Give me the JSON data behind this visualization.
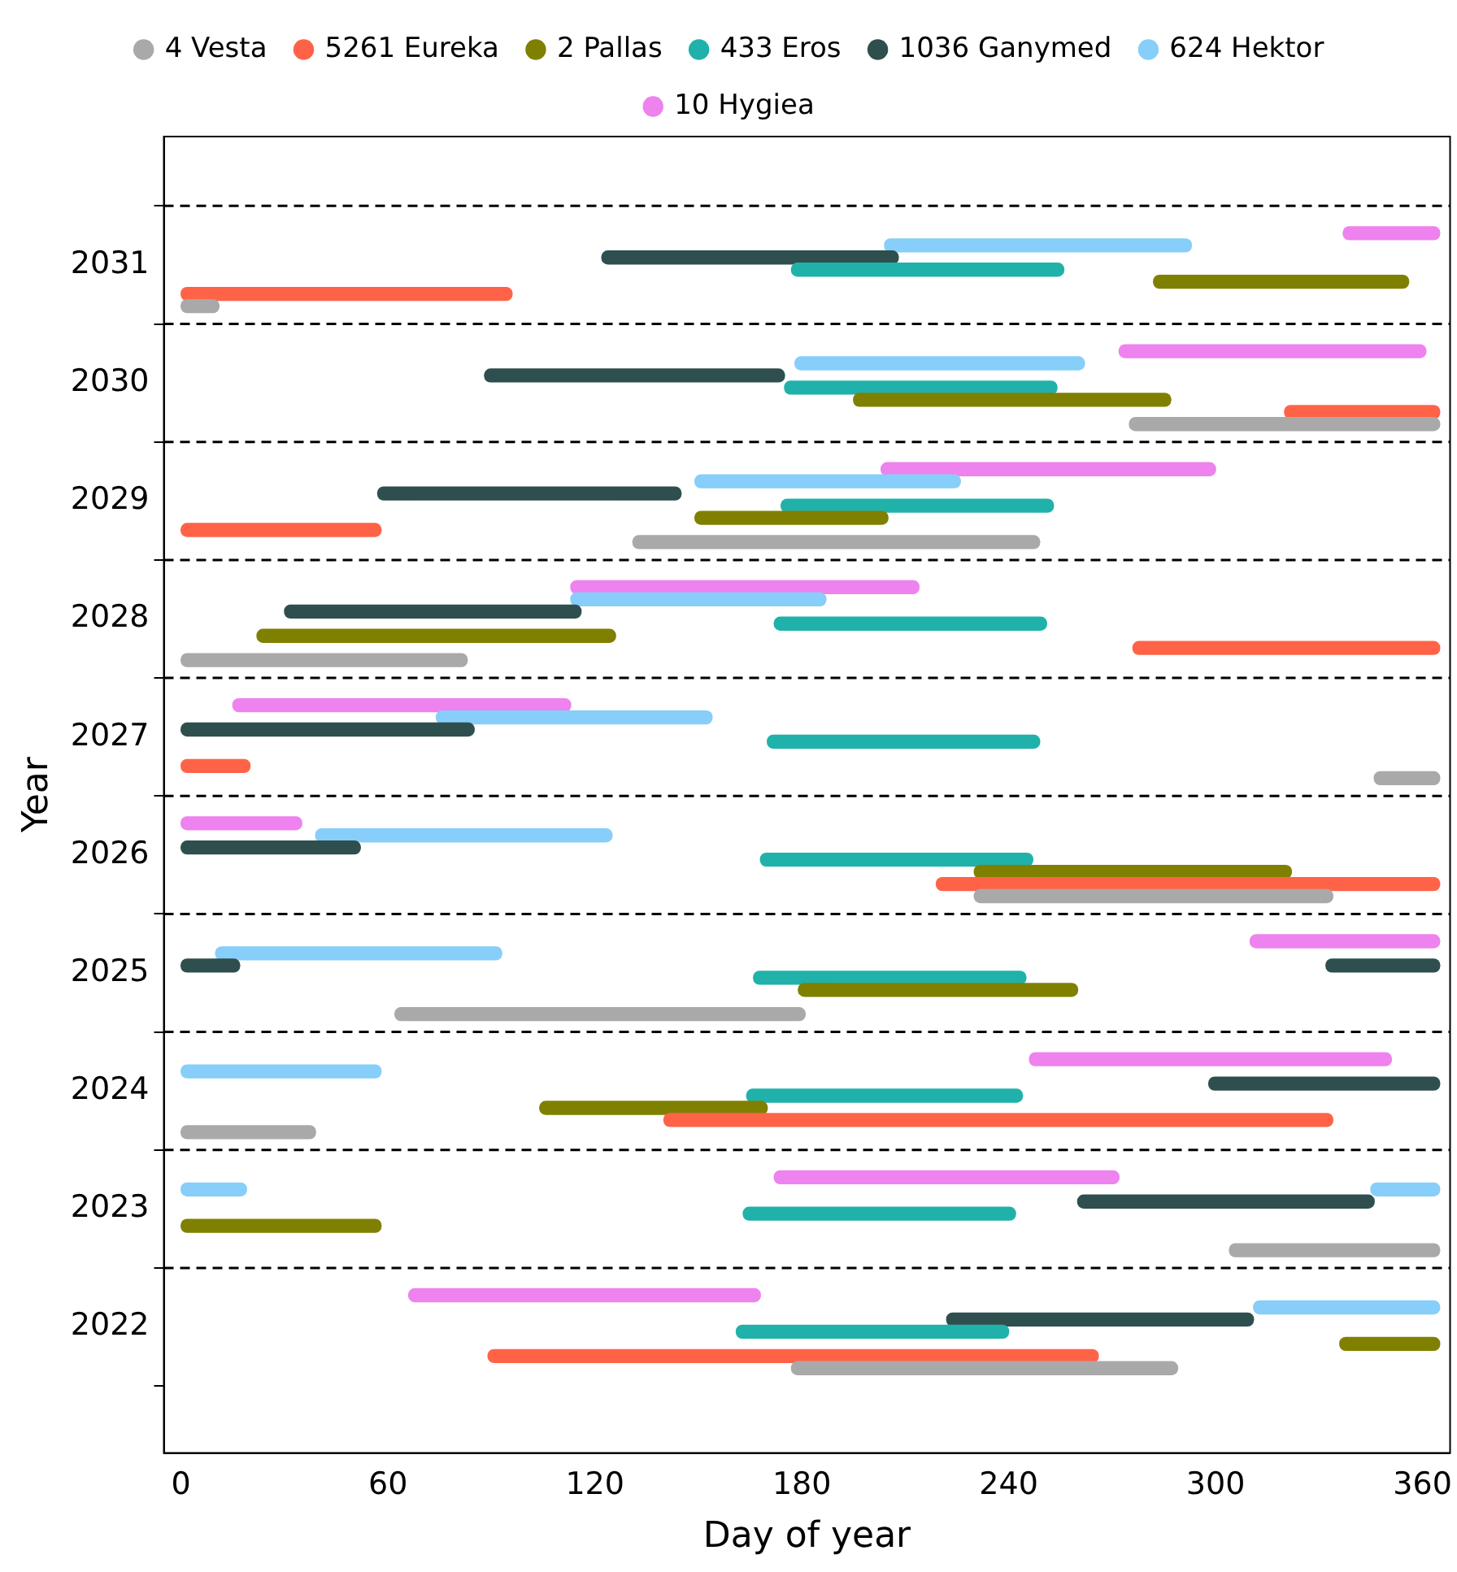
{
  "chart_data": {
    "type": "bar",
    "orientation": "horizontal",
    "xlabel": "Day of year",
    "ylabel": "Year",
    "categories": [
      "2031",
      "2030",
      "2029",
      "2028",
      "2027",
      "2026",
      "2025",
      "2024",
      "2023",
      "2022"
    ],
    "xlim": [
      -5,
      368
    ],
    "xticks": [
      0,
      60,
      120,
      180,
      240,
      300,
      360
    ],
    "grid": "y",
    "legend": "top",
    "series": [
      {
        "name": "4 Vesta",
        "color": "#a9a9a9",
        "base": [
          0,
          275,
          131,
          0,
          346,
          230,
          62,
          0,
          304,
          177
        ],
        "values": [
          11,
          90,
          118,
          83,
          19,
          104,
          119,
          39,
          61,
          112
        ]
      },
      {
        "name": "5261 Eureka",
        "color": "#ff6347",
        "base": [
          0,
          320,
          0,
          276,
          0,
          219,
          null,
          140,
          null,
          89
        ],
        "values": [
          96,
          45,
          58,
          89,
          20,
          146,
          null,
          194,
          null,
          177
        ]
      },
      {
        "name": "2 Pallas",
        "color": "#808000",
        "base": [
          282,
          195,
          149,
          22,
          null,
          230,
          179,
          104,
          0,
          336
        ],
        "values": [
          74,
          92,
          56,
          104,
          null,
          92,
          81,
          66,
          58,
          29
        ]
      },
      {
        "name": "433 Eros",
        "color": "#20b2aa",
        "base": [
          177,
          175,
          174,
          172,
          170,
          168,
          166,
          164,
          163,
          161
        ],
        "values": [
          79,
          79,
          79,
          79,
          79,
          79,
          79,
          80,
          79,
          79
        ]
      },
      {
        "name": "1036 Ganymed",
        "color": "#2f4f4f",
        "base": [
          122,
          88,
          57,
          30,
          0,
          0,
          0,
          298,
          260,
          222
        ],
        "values": [
          86,
          87,
          88,
          86,
          85,
          52,
          17,
          67,
          86,
          89
        ]
      },
      {
        "color": "#2f4f4f",
        "base": [
          null,
          null,
          null,
          null,
          null,
          null,
          332,
          null,
          null,
          null
        ],
        "values": [
          null,
          null,
          null,
          null,
          null,
          null,
          33,
          null,
          null,
          null
        ]
      },
      {
        "name": "624 Hektor",
        "color": "#87cefa",
        "base": [
          204,
          178,
          149,
          113,
          74,
          39,
          10,
          0,
          0,
          311
        ],
        "values": [
          89,
          84,
          77,
          74,
          80,
          86,
          83,
          58,
          19,
          54
        ]
      },
      {
        "color": "#87cefa",
        "base": [
          null,
          null,
          null,
          null,
          null,
          null,
          null,
          null,
          345,
          null
        ],
        "values": [
          null,
          null,
          null,
          null,
          null,
          null,
          null,
          null,
          20,
          null
        ]
      },
      {
        "name": "10 Hygiea",
        "color": "#ee82ee",
        "base": [
          337,
          272,
          203,
          113,
          15,
          0,
          310,
          246,
          172,
          66
        ],
        "values": [
          28,
          89,
          97,
          101,
          98,
          35,
          55,
          105,
          100,
          102
        ]
      }
    ]
  }
}
